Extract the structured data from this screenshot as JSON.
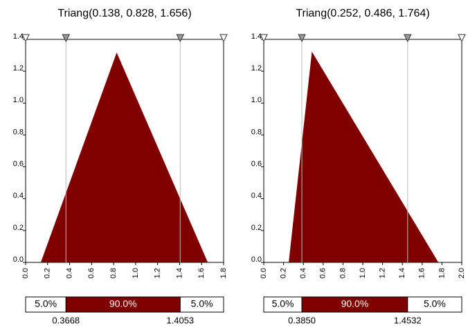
{
  "chart_data": [
    {
      "type": "area",
      "title": "Triang(0.138, 0.828, 1.656)",
      "color": "#800000",
      "x": [
        0.138,
        0.828,
        1.656
      ],
      "values": [
        0,
        1.3175,
        0
      ],
      "xlim": [
        0,
        1.8
      ],
      "xticks": [
        {
          "value": 0,
          "label": "0.0"
        },
        {
          "value": 0.2,
          "label": "0.2"
        },
        {
          "value": 0.4,
          "label": "0.4"
        },
        {
          "value": 0.6,
          "label": "0.6"
        },
        {
          "value": 0.8,
          "label": "0.8"
        },
        {
          "value": 1,
          "label": "1.0"
        },
        {
          "value": 1.2,
          "label": "1.2"
        },
        {
          "value": 1.4,
          "label": "1.4"
        },
        {
          "value": 1.6,
          "label": "1.6"
        },
        {
          "value": 1.8,
          "label": "1.8"
        }
      ],
      "ylim": [
        0,
        1.4
      ],
      "yticks": [
        {
          "value": 0,
          "label": "0.0"
        },
        {
          "value": 0.2,
          "label": "0.2"
        },
        {
          "value": 0.4,
          "label": "0.4"
        },
        {
          "value": 0.6,
          "label": "0.6"
        },
        {
          "value": 0.8,
          "label": "0.8"
        },
        {
          "value": 1,
          "label": "1.0"
        },
        {
          "value": 1.2,
          "label": "1.2"
        },
        {
          "value": 1.4,
          "label": "1.4"
        }
      ],
      "delimiters": [
        0.3668,
        1.4053
      ],
      "bands": {
        "values": [
          5,
          90,
          5
        ],
        "value_labels": [
          "5.0%",
          "90.0%",
          "5.0%"
        ]
      }
    },
    {
      "type": "area",
      "title": "Triang(0.252, 0.486, 1.764)",
      "color": "#800000",
      "x": [
        0.252,
        0.486,
        1.764
      ],
      "values": [
        0,
        1.3228,
        0
      ],
      "xlim": [
        0,
        2
      ],
      "xticks": [
        {
          "value": 0,
          "label": "0.0"
        },
        {
          "value": 0.2,
          "label": "0.2"
        },
        {
          "value": 0.4,
          "label": "0.4"
        },
        {
          "value": 0.6,
          "label": "0.6"
        },
        {
          "value": 0.8,
          "label": "0.8"
        },
        {
          "value": 1,
          "label": "1.0"
        },
        {
          "value": 1.2,
          "label": "1.2"
        },
        {
          "value": 1.4,
          "label": "1.4"
        },
        {
          "value": 1.6,
          "label": "1.6"
        },
        {
          "value": 1.8,
          "label": "1.8"
        },
        {
          "value": 2,
          "label": "2.0"
        }
      ],
      "ylim": [
        0,
        1.4
      ],
      "yticks": [
        {
          "value": 0,
          "label": "0.0"
        },
        {
          "value": 0.2,
          "label": "0.2"
        },
        {
          "value": 0.4,
          "label": "0.4"
        },
        {
          "value": 0.6,
          "label": "0.6"
        },
        {
          "value": 0.8,
          "label": "0.8"
        },
        {
          "value": 1,
          "label": "1.0"
        },
        {
          "value": 1.2,
          "label": "1.2"
        },
        {
          "value": 1.4,
          "label": "1.4"
        }
      ],
      "delimiters": [
        {
          "value": 0.385,
          "label": "0.3850"
        },
        1.4532
      ],
      "bands": {
        "values": [
          5,
          90,
          5
        ],
        "value_labels": [
          "5.0%",
          "90.0%",
          "5.0%"
        ]
      }
    }
  ]
}
